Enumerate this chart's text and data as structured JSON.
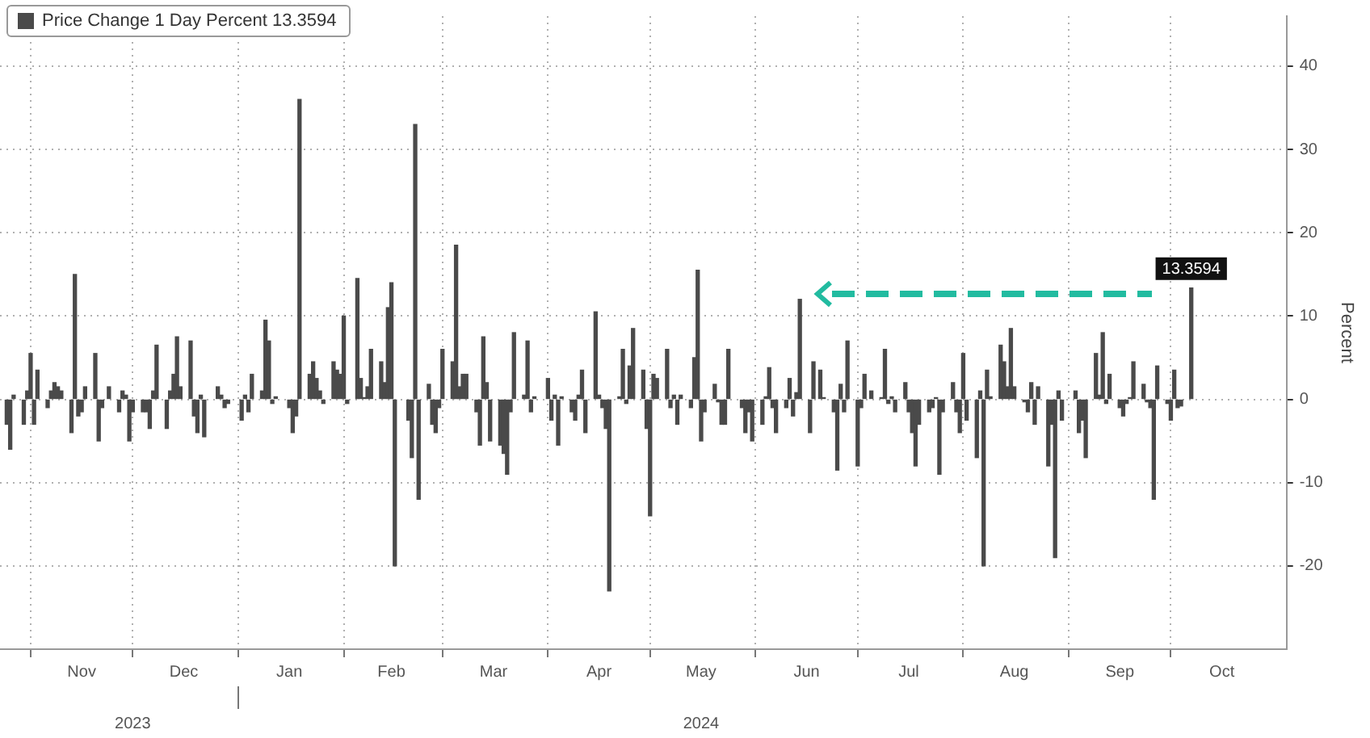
{
  "chart_data": {
    "type": "bar",
    "ylabel": "Percent",
    "legend": "top left",
    "grid": true,
    "xlim": [
      "2023-10-23",
      "2024-11-04"
    ],
    "xticks": [
      {
        "value": "2023-11-01",
        "label": null
      },
      {
        "value": "2023-11-16",
        "label": "Nov"
      },
      {
        "value": "2023-12-01",
        "label": null
      },
      {
        "value": "2023-12-16",
        "label": "Dec"
      },
      {
        "value": "2024-01-01",
        "label": null
      },
      {
        "value": "2024-01-16",
        "label": "Jan"
      },
      {
        "value": "2024-02-01",
        "label": null
      },
      {
        "value": "2024-02-15",
        "label": "Feb"
      },
      {
        "value": "2024-03-01",
        "label": null
      },
      {
        "value": "2024-03-16",
        "label": "Mar"
      },
      {
        "value": "2024-04-01",
        "label": null
      },
      {
        "value": "2024-04-16",
        "label": "Apr"
      },
      {
        "value": "2024-05-01",
        "label": null
      },
      {
        "value": "2024-05-16",
        "label": "May"
      },
      {
        "value": "2024-06-01",
        "label": null
      },
      {
        "value": "2024-06-16",
        "label": "Jun"
      },
      {
        "value": "2024-07-01",
        "label": null
      },
      {
        "value": "2024-07-16",
        "label": "Jul"
      },
      {
        "value": "2024-08-01",
        "label": null
      },
      {
        "value": "2024-08-16",
        "label": "Aug"
      },
      {
        "value": "2024-09-01",
        "label": null
      },
      {
        "value": "2024-09-16",
        "label": "Sep"
      },
      {
        "value": "2024-10-01",
        "label": null
      },
      {
        "value": "2024-10-16",
        "label": "Oct"
      }
    ],
    "x2lim": [
      "2023-10-23",
      "2024-11-04"
    ],
    "x2ticks": [
      {
        "value": "2023-12-01",
        "label": "2023"
      },
      {
        "value": "2024-01-01",
        "label": null
      },
      {
        "value": "2024-05-16",
        "label": "2024"
      }
    ],
    "ylim": [
      -30,
      46
    ],
    "yticks": [
      -20,
      -10,
      0,
      10,
      20,
      30,
      40
    ],
    "x": [
      "2023-10-25",
      "2023-10-26",
      "2023-10-27",
      "2023-10-30",
      "2023-10-31",
      "2023-11-01",
      "2023-11-02",
      "2023-11-03",
      "2023-11-06",
      "2023-11-07",
      "2023-11-08",
      "2023-11-09",
      "2023-11-10",
      "2023-11-13",
      "2023-11-14",
      "2023-11-15",
      "2023-11-16",
      "2023-11-17",
      "2023-11-20",
      "2023-11-21",
      "2023-11-22",
      "2023-11-24",
      "2023-11-27",
      "2023-11-28",
      "2023-11-29",
      "2023-11-30",
      "2023-12-01",
      "2023-12-04",
      "2023-12-05",
      "2023-12-06",
      "2023-12-07",
      "2023-12-08",
      "2023-12-11",
      "2023-12-12",
      "2023-12-13",
      "2023-12-14",
      "2023-12-15",
      "2023-12-18",
      "2023-12-19",
      "2023-12-20",
      "2023-12-21",
      "2023-12-22",
      "2023-12-26",
      "2023-12-27",
      "2023-12-28",
      "2023-12-29",
      "2024-01-02",
      "2024-01-03",
      "2024-01-04",
      "2024-01-05",
      "2024-01-08",
      "2024-01-09",
      "2024-01-10",
      "2024-01-11",
      "2024-01-12",
      "2024-01-16",
      "2024-01-17",
      "2024-01-18",
      "2024-01-19",
      "2024-01-22",
      "2024-01-23",
      "2024-01-24",
      "2024-01-25",
      "2024-01-26",
      "2024-01-29",
      "2024-01-30",
      "2024-01-31",
      "2024-02-01",
      "2024-02-02",
      "2024-02-05",
      "2024-02-06",
      "2024-02-07",
      "2024-02-08",
      "2024-02-09",
      "2024-02-12",
      "2024-02-13",
      "2024-02-14",
      "2024-02-15",
      "2024-02-16",
      "2024-02-20",
      "2024-02-21",
      "2024-02-22",
      "2024-02-23",
      "2024-02-26",
      "2024-02-27",
      "2024-02-28",
      "2024-02-29",
      "2024-03-01",
      "2024-03-04",
      "2024-03-05",
      "2024-03-06",
      "2024-03-07",
      "2024-03-08",
      "2024-03-11",
      "2024-03-12",
      "2024-03-13",
      "2024-03-14",
      "2024-03-15",
      "2024-03-18",
      "2024-03-19",
      "2024-03-20",
      "2024-03-21",
      "2024-03-22",
      "2024-03-25",
      "2024-03-26",
      "2024-03-27",
      "2024-03-28",
      "2024-04-01",
      "2024-04-02",
      "2024-04-03",
      "2024-04-04",
      "2024-04-05",
      "2024-04-08",
      "2024-04-09",
      "2024-04-10",
      "2024-04-11",
      "2024-04-12",
      "2024-04-15",
      "2024-04-16",
      "2024-04-17",
      "2024-04-18",
      "2024-04-19",
      "2024-04-22",
      "2024-04-23",
      "2024-04-24",
      "2024-04-25",
      "2024-04-26",
      "2024-04-29",
      "2024-04-30",
      "2024-05-01",
      "2024-05-02",
      "2024-05-03",
      "2024-05-06",
      "2024-05-07",
      "2024-05-08",
      "2024-05-09",
      "2024-05-10",
      "2024-05-13",
      "2024-05-14",
      "2024-05-15",
      "2024-05-16",
      "2024-05-17",
      "2024-05-20",
      "2024-05-21",
      "2024-05-22",
      "2024-05-23",
      "2024-05-24",
      "2024-05-28",
      "2024-05-29",
      "2024-05-30",
      "2024-05-31",
      "2024-06-03",
      "2024-06-04",
      "2024-06-05",
      "2024-06-06",
      "2024-06-07",
      "2024-06-10",
      "2024-06-11",
      "2024-06-12",
      "2024-06-13",
      "2024-06-14",
      "2024-06-17",
      "2024-06-18",
      "2024-06-20",
      "2024-06-21",
      "2024-06-24",
      "2024-06-25",
      "2024-06-26",
      "2024-06-27",
      "2024-06-28",
      "2024-07-01",
      "2024-07-02",
      "2024-07-03",
      "2024-07-05",
      "2024-07-08",
      "2024-07-09",
      "2024-07-10",
      "2024-07-11",
      "2024-07-12",
      "2024-07-15",
      "2024-07-16",
      "2024-07-17",
      "2024-07-18",
      "2024-07-19",
      "2024-07-22",
      "2024-07-23",
      "2024-07-24",
      "2024-07-25",
      "2024-07-26",
      "2024-07-29",
      "2024-07-30",
      "2024-07-31",
      "2024-08-01",
      "2024-08-02",
      "2024-08-05",
      "2024-08-06",
      "2024-08-07",
      "2024-08-08",
      "2024-08-09",
      "2024-08-12",
      "2024-08-13",
      "2024-08-14",
      "2024-08-15",
      "2024-08-16",
      "2024-08-19",
      "2024-08-20",
      "2024-08-21",
      "2024-08-22",
      "2024-08-23",
      "2024-08-26",
      "2024-08-27",
      "2024-08-28",
      "2024-08-29",
      "2024-08-30",
      "2024-09-03",
      "2024-09-04",
      "2024-09-05",
      "2024-09-06",
      "2024-09-09",
      "2024-09-10",
      "2024-09-11",
      "2024-09-12",
      "2024-09-13",
      "2024-09-16",
      "2024-09-17",
      "2024-09-18",
      "2024-09-19",
      "2024-09-20",
      "2024-09-23",
      "2024-09-24",
      "2024-09-25",
      "2024-09-26",
      "2024-09-27",
      "2024-09-30",
      "2024-10-01",
      "2024-10-02",
      "2024-10-03",
      "2024-10-04",
      "2024-10-07"
    ],
    "series": [
      {
        "name": "Price Change 1 Day Percent 13.3594",
        "color": "#4a4a4a",
        "values": [
          -3,
          -6,
          0.5,
          -3,
          1,
          5.5,
          -3,
          3.5,
          -1,
          1,
          2,
          1.5,
          1,
          -4,
          15,
          -2,
          -1.5,
          1.5,
          5.5,
          -5,
          -1,
          1.5,
          -1.5,
          1,
          0.5,
          -5,
          -1.5,
          -1.5,
          -1.5,
          -3.5,
          1,
          6.5,
          -3.5,
          1,
          3,
          7.5,
          1.5,
          7,
          -2,
          -4,
          0.5,
          -4.5,
          1.5,
          0.5,
          -1,
          -0.5,
          -2.5,
          0.5,
          -1.5,
          3,
          1,
          9.5,
          7,
          -0.5,
          0.3,
          -1,
          -4,
          -2,
          36,
          3,
          4.5,
          2.5,
          1,
          -0.5,
          4.5,
          3.5,
          3,
          10,
          -0.5,
          14.5,
          2.5,
          0.2,
          1.5,
          6,
          4.5,
          2,
          11,
          14,
          -20,
          -2.5,
          -7,
          33,
          -12,
          1.8,
          -3,
          -4,
          -1,
          6,
          4.5,
          18.5,
          1.5,
          3,
          3,
          -1.5,
          -5.5,
          7.5,
          2,
          -5,
          -5.5,
          -6.5,
          -9,
          -1.5,
          8,
          0.5,
          7,
          -1.5,
          0.3,
          2.5,
          -2.5,
          0.5,
          -5.5,
          0.3,
          -1.5,
          -2.5,
          0.5,
          3.5,
          -4,
          10.5,
          0.5,
          -1,
          -3.5,
          -23,
          0.3,
          6,
          -0.5,
          4,
          8.5,
          3.5,
          -3.5,
          -14,
          3,
          2.5,
          6,
          -1,
          0.5,
          -3,
          0.5,
          -1,
          5,
          15.5,
          -5,
          -1.5,
          1.8,
          -0.3,
          -3,
          -3,
          6,
          -1,
          -4,
          -1.5,
          -5,
          -3,
          0.3,
          3.8,
          -1,
          -4,
          -1,
          2.5,
          -2,
          0.8,
          12,
          -4,
          4.5,
          3.5,
          0.2,
          -1.5,
          -8.5,
          1.8,
          -1.5,
          7,
          -8,
          -1,
          3,
          1,
          0.2,
          6,
          -0.5,
          0.3,
          -1.5,
          2,
          -1.5,
          -4,
          -8,
          -3,
          -1.5,
          -1,
          0.2,
          -9,
          -1.5,
          2,
          -1.5,
          -4,
          5.5,
          -2.5,
          -7,
          1,
          -20,
          3.5,
          0.3,
          6.5,
          4.5,
          1.5,
          8.5,
          1.5,
          -0.3,
          -1.5,
          2,
          -3,
          1.5,
          -8,
          -3,
          -19,
          1,
          -2.5,
          1,
          -4,
          -2.5,
          -7,
          5.5,
          0.5,
          8,
          -0.5,
          3,
          -1,
          -2,
          -0.5,
          0.2,
          4.5,
          1.8,
          -0.3,
          -1,
          -12,
          4,
          -0.5,
          -2.5,
          3.5,
          -1,
          -0.8,
          13.3594
        ],
        "value_labels": [
          null,
          null,
          null,
          null,
          null,
          null,
          null,
          null,
          null,
          null,
          null,
          null,
          null,
          null,
          null,
          null,
          null,
          null,
          null,
          null,
          null,
          null,
          null,
          null,
          null,
          null,
          null,
          null,
          null,
          null,
          null,
          null,
          null,
          null,
          null,
          null,
          null,
          null,
          null,
          null,
          null,
          null,
          null,
          null,
          null,
          null,
          null,
          null,
          null,
          null,
          null,
          null,
          null,
          null,
          null,
          null,
          null,
          null,
          null,
          null,
          null,
          null,
          null,
          null,
          null,
          null,
          null,
          null,
          null,
          null,
          null,
          null,
          null,
          null,
          null,
          null,
          null,
          null,
          null,
          null,
          null,
          null,
          null,
          null,
          null,
          null,
          null,
          null,
          null,
          null,
          null,
          null,
          null,
          null,
          null,
          null,
          null,
          null,
          null,
          null,
          null,
          null,
          null,
          null,
          null,
          null,
          null,
          null,
          null,
          null,
          null,
          null,
          null,
          null,
          null,
          null,
          null,
          null,
          null,
          null,
          null,
          null,
          null,
          null,
          null,
          null,
          null,
          null,
          null,
          null,
          null,
          null,
          null,
          null,
          null,
          null,
          null,
          null,
          null,
          null,
          null,
          null,
          null,
          null,
          null,
          null,
          null,
          null,
          null,
          null,
          null,
          null,
          null,
          null,
          null,
          null,
          null,
          null,
          null,
          null,
          null,
          null,
          null,
          null,
          null,
          null,
          null,
          null,
          null,
          null,
          null,
          null,
          null,
          null,
          null,
          null,
          null,
          null,
          null,
          null,
          null,
          null,
          null,
          null,
          null,
          null,
          null,
          null,
          null,
          null,
          null,
          null,
          null,
          null,
          null,
          null,
          null,
          null,
          null,
          null,
          null,
          null,
          null,
          null,
          null,
          null,
          null,
          null,
          null,
          null,
          null,
          null,
          null,
          null,
          null,
          null,
          null,
          null,
          null,
          null,
          null,
          null,
          null,
          null,
          null,
          null,
          null,
          null,
          null,
          null,
          null,
          null,
          null,
          null,
          null,
          null,
          null,
          null,
          "13.3594"
        ]
      }
    ]
  }
}
